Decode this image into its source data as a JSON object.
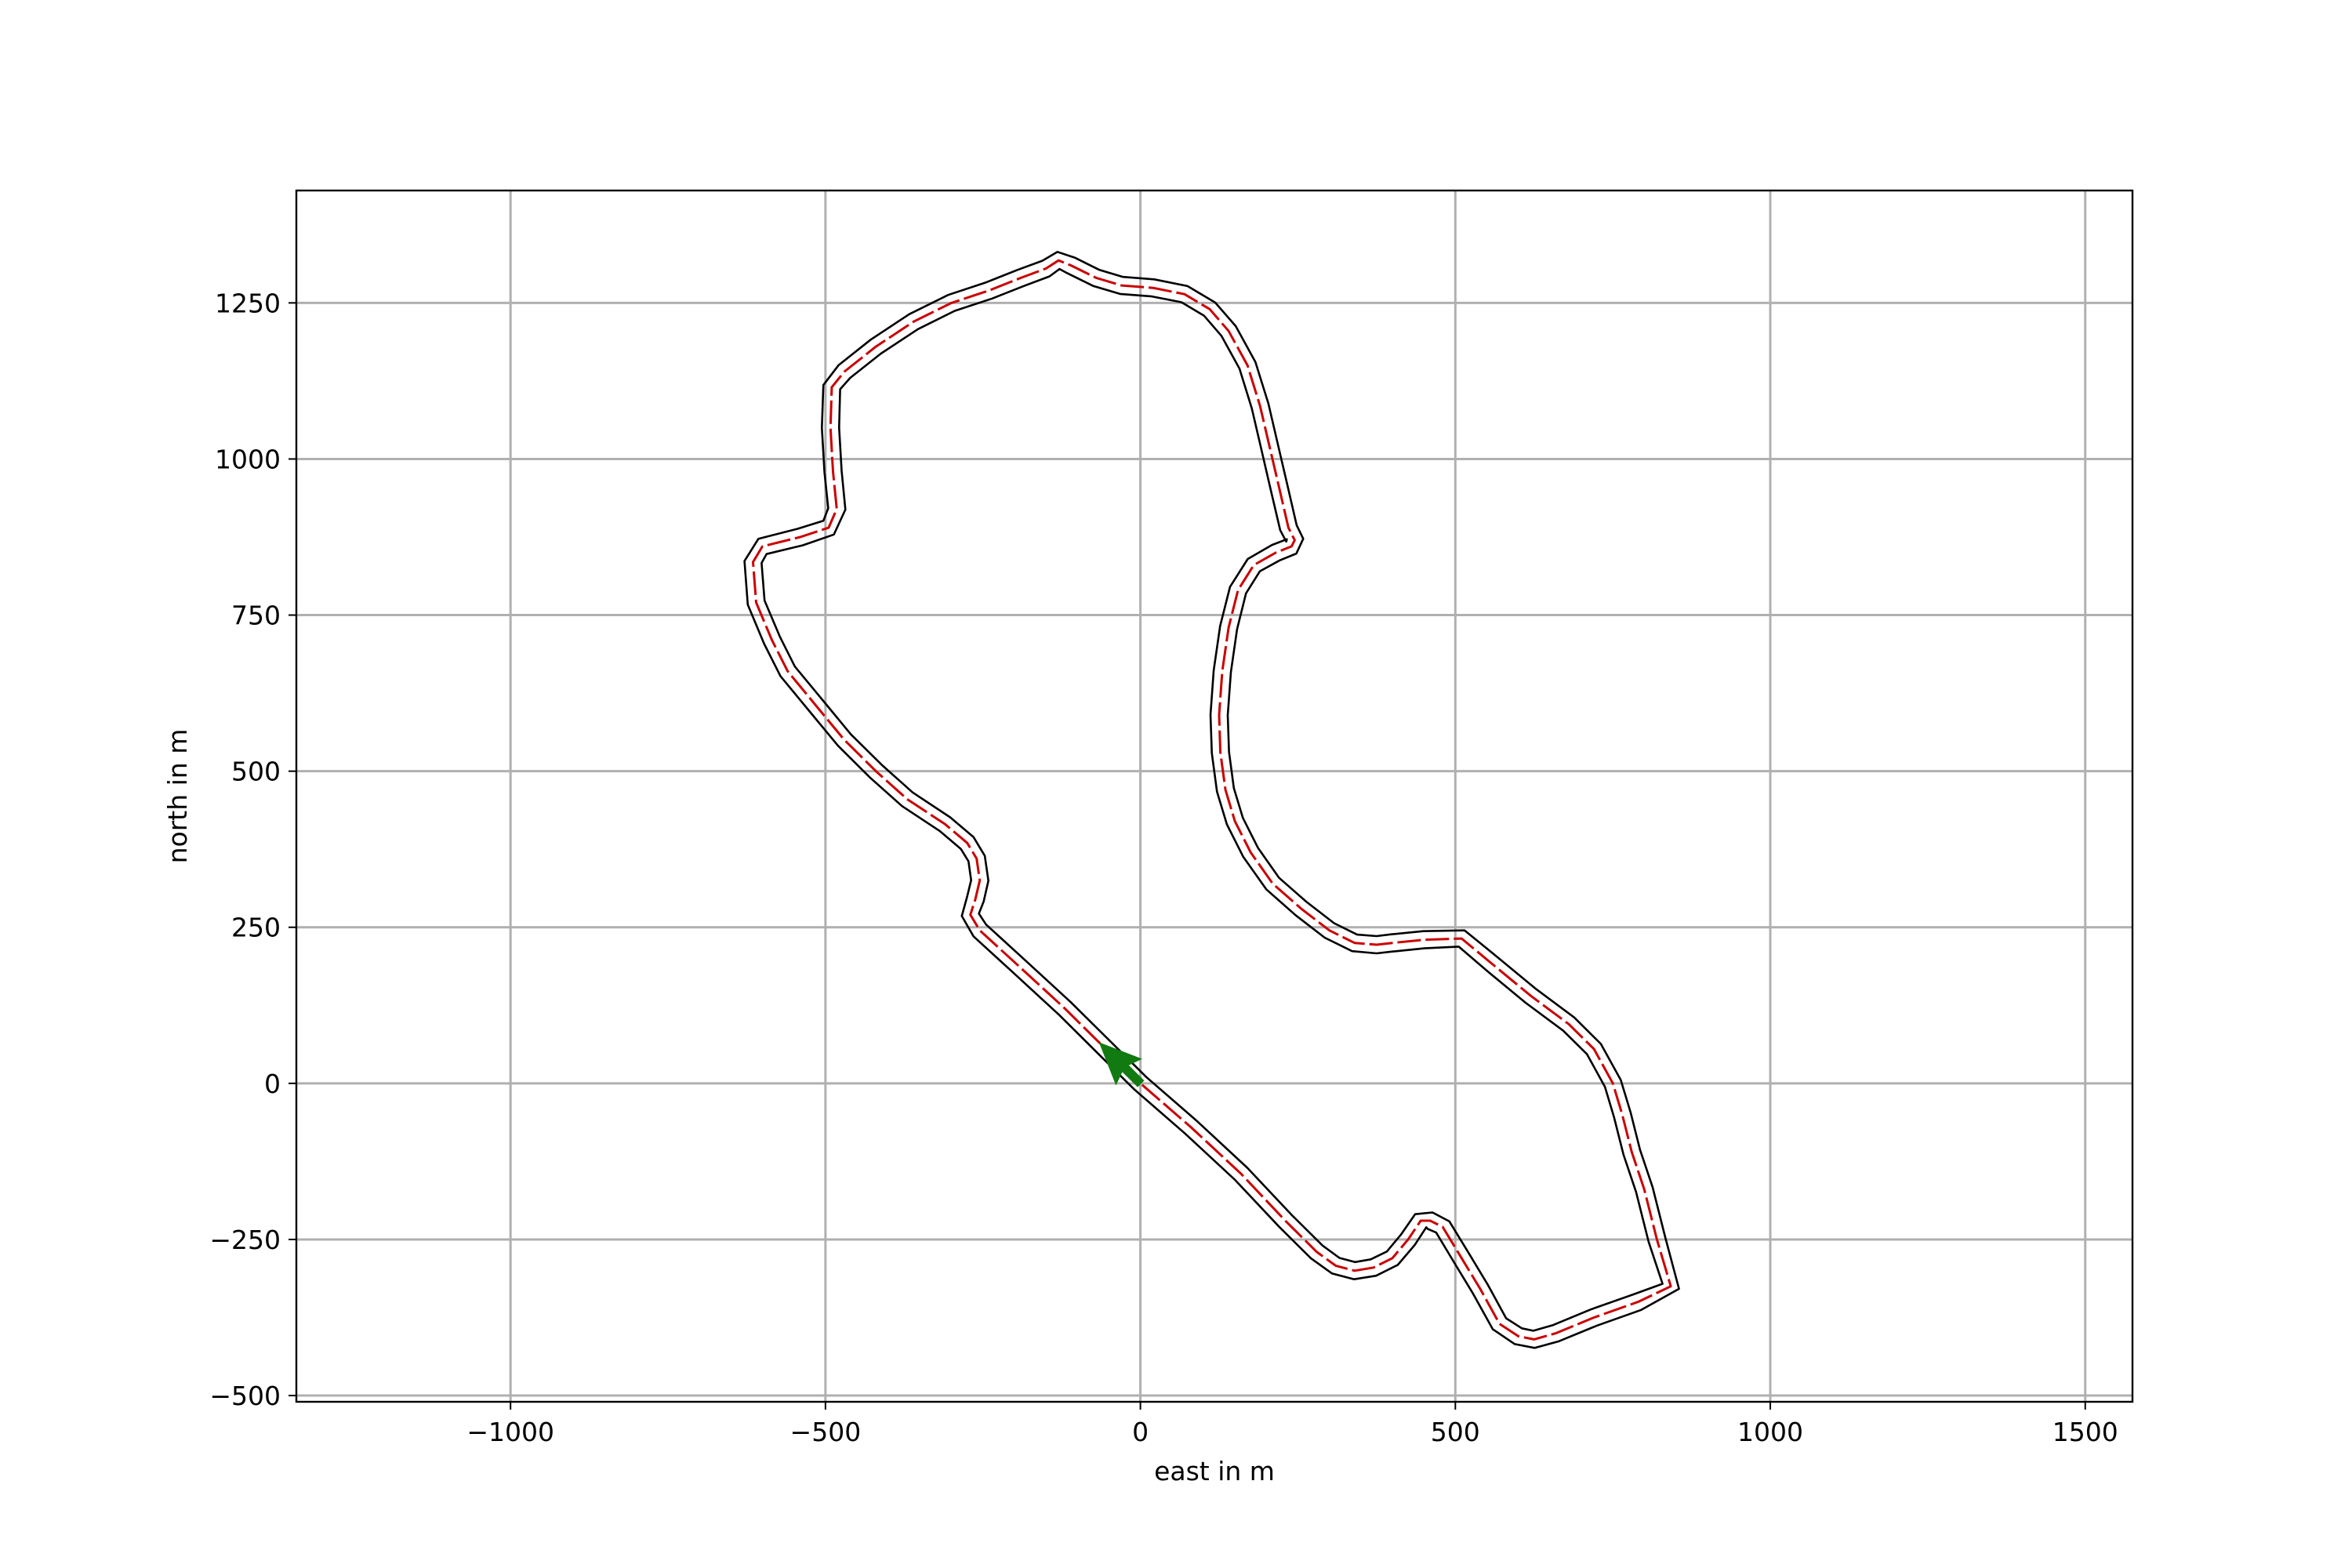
{
  "chart_data": {
    "type": "line",
    "title": "",
    "xlabel": "east in m",
    "ylabel": "north in m",
    "xlim": [
      -1340,
      1575
    ],
    "ylim": [
      -510,
      1430
    ],
    "xticks": [
      -1000,
      -500,
      0,
      500,
      1000,
      1500
    ],
    "yticks": [
      -500,
      -250,
      0,
      250,
      500,
      750,
      1000,
      1250
    ],
    "xtick_labels": [
      "−1000",
      "−500",
      "0",
      "500",
      "1000",
      "1500"
    ],
    "ytick_labels": [
      "−500",
      "−250",
      "0",
      "250",
      "500",
      "750",
      "1000",
      "1250"
    ],
    "grid": true,
    "colors": {
      "track": "#000000",
      "path": "#cc0000",
      "arrow": "#117a11"
    },
    "centerline": {
      "x": [
        0,
        -55,
        -120,
        -190,
        -255,
        -270,
        -262,
        -255,
        -260,
        -275,
        -310,
        -370,
        -420,
        -470,
        -515,
        -560,
        -585,
        -610,
        -615,
        -600,
        -540,
        -495,
        -482,
        -488,
        -492,
        -490,
        -470,
        -420,
        -360,
        -300,
        -240,
        -190,
        -150,
        -130,
        -110,
        -70,
        -30,
        20,
        70,
        110,
        140,
        170,
        190,
        205,
        220,
        235,
        245,
        240,
        215,
        180,
        155,
        140,
        130,
        125,
        127,
        135,
        150,
        175,
        210,
        255,
        300,
        340,
        375,
        400,
        450,
        510,
        560,
        620,
        680,
        720,
        750,
        765,
        780,
        800,
        820,
        842,
        790,
        720,
        660,
        625,
        600,
        570,
        540,
        510,
        480,
        460,
        445,
        425,
        400,
        370,
        340,
        310,
        280,
        230,
        160,
        80,
        0
      ],
      "y": [
        0,
        55,
        120,
        185,
        245,
        270,
        295,
        325,
        360,
        385,
        415,
        455,
        500,
        550,
        605,
        660,
        710,
        770,
        835,
        860,
        875,
        890,
        920,
        980,
        1050,
        1115,
        1140,
        1180,
        1220,
        1250,
        1270,
        1290,
        1305,
        1318,
        1310,
        1290,
        1278,
        1274,
        1264,
        1240,
        1205,
        1150,
        1085,
        1020,
        955,
        890,
        870,
        860,
        850,
        830,
        790,
        730,
        660,
        590,
        530,
        470,
        420,
        370,
        320,
        280,
        245,
        225,
        222,
        225,
        230,
        232,
        190,
        140,
        95,
        55,
        0,
        -50,
        -110,
        -170,
        -250,
        -325,
        -350,
        -375,
        -400,
        -410,
        -405,
        -385,
        -330,
        -280,
        -230,
        -220,
        -220,
        -250,
        -280,
        -295,
        -300,
        -292,
        -270,
        -220,
        -145,
        -70,
        0
      ]
    }
  }
}
